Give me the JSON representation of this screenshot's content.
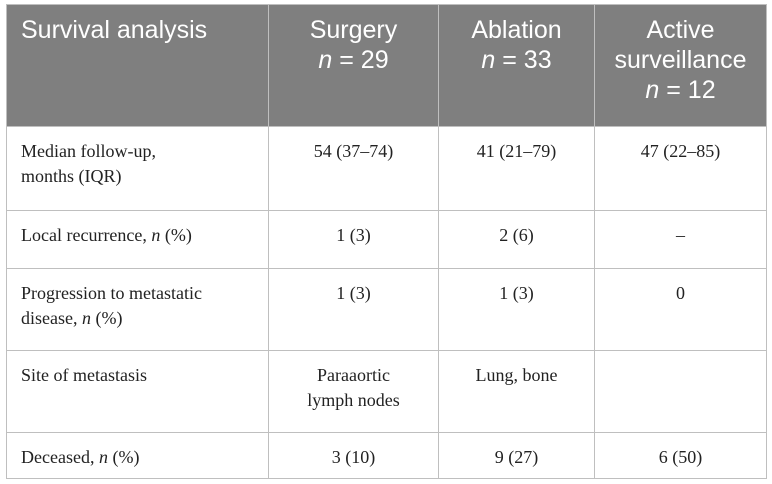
{
  "header": {
    "survival": "Survival analysis",
    "surgery": {
      "name": "Surgery",
      "n": "n",
      "eq": " = 29"
    },
    "ablation": {
      "name": "Ablation",
      "n": "n",
      "eq": " = 33"
    },
    "active": {
      "name1": "Active",
      "name2": "surveillance",
      "n": "n",
      "eq": " = 12"
    }
  },
  "rows": {
    "followup": {
      "label1": "Median follow-up,",
      "label2": "months (IQR)",
      "surgery": "54 (37–74)",
      "ablation": "41 (21–79)",
      "active": "47 (22–85)"
    },
    "local": {
      "label_a": "Local recurrence, ",
      "n": "n",
      "label_b": " (%)",
      "surgery": "1 (3)",
      "ablation": "2 (6)",
      "active": "–"
    },
    "progression": {
      "label1": "Progression to metastatic",
      "label2a": "disease, ",
      "n": "n",
      "label2b": " (%)",
      "surgery": "1 (3)",
      "ablation": "1 (3)",
      "active": "0"
    },
    "site": {
      "label": "Site of metastasis",
      "surgery1": "Paraaortic",
      "surgery2": "lymph nodes",
      "ablation": "Lung, bone",
      "active": ""
    },
    "deceased": {
      "label_a": "Deceased, ",
      "n": "n",
      "label_b": " (%)",
      "surgery": "3 (10)",
      "ablation": "9 (27)",
      "active": "6 (50)"
    }
  }
}
